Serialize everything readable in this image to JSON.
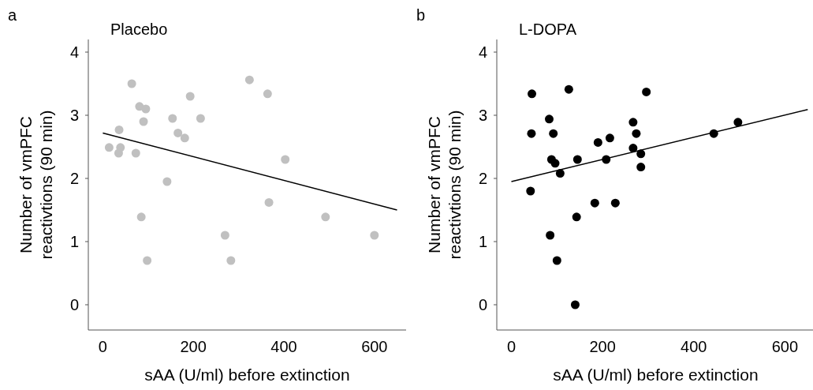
{
  "chart_data": [
    {
      "type": "scatter",
      "title": "Placebo",
      "xlabel": "sAA (U/ml) before extinction",
      "ylabel": "Number of vmPFC reactivtions (90 min)",
      "annotations": [
        "a"
      ],
      "xlim": [
        -32,
        670
      ],
      "ylim": [
        -0.4,
        4.2
      ],
      "xticks": [
        0,
        200,
        400,
        600
      ],
      "yticks": [
        0,
        1,
        2,
        3,
        4
      ],
      "marker": "circle",
      "series": [
        {
          "color": "#c0c0c0",
          "x": [
            64,
            14,
            35,
            39,
            36,
            73,
            81,
            95,
            90,
            85,
            98,
            142,
            154,
            166,
            181,
            193,
            216,
            270,
            283,
            324,
            364,
            367,
            403,
            492,
            600
          ],
          "values": [
            3.5,
            2.49,
            2.4,
            2.49,
            2.77,
            2.4,
            3.14,
            3.1,
            2.9,
            1.39,
            0.7,
            1.95,
            2.95,
            2.72,
            2.64,
            3.3,
            2.95,
            1.1,
            0.7,
            3.56,
            3.34,
            1.62,
            2.3,
            1.39,
            1.1
          ]
        },
        {
          "type": "line",
          "color": "#000000",
          "marker": "none",
          "x": [
            0,
            650
          ],
          "values": [
            2.72,
            1.5
          ]
        }
      ]
    },
    {
      "type": "scatter",
      "title": "L-DOPA",
      "xlabel": "sAA (U/ml) before extinction",
      "ylabel": "Number of vmPFC reactivtions (90 min)",
      "annotations": [
        "b"
      ],
      "xlim": [
        -32,
        665
      ],
      "ylim": [
        -0.4,
        4.2
      ],
      "xticks": [
        0,
        200,
        400,
        600
      ],
      "yticks": [
        0,
        1,
        2,
        3,
        4
      ],
      "marker": "circle",
      "series": [
        {
          "color": "#000000",
          "x": [
            45,
            44,
            42,
            126,
            83,
            92,
            88,
            96,
            107,
            85,
            100,
            140,
            143,
            145,
            183,
            190,
            208,
            216,
            228,
            267,
            274,
            267,
            284,
            284,
            296,
            444,
            497
          ],
          "values": [
            3.34,
            2.71,
            1.8,
            3.41,
            2.94,
            2.71,
            2.3,
            2.24,
            2.08,
            1.1,
            0.7,
            0,
            1.39,
            2.3,
            1.61,
            2.57,
            2.3,
            2.64,
            1.61,
            2.89,
            2.71,
            2.48,
            2.39,
            2.18,
            3.37,
            2.71,
            2.89
          ]
        },
        {
          "type": "line",
          "color": "#000000",
          "marker": "none",
          "x": [
            0,
            650
          ],
          "values": [
            1.95,
            3.09
          ]
        }
      ]
    }
  ]
}
